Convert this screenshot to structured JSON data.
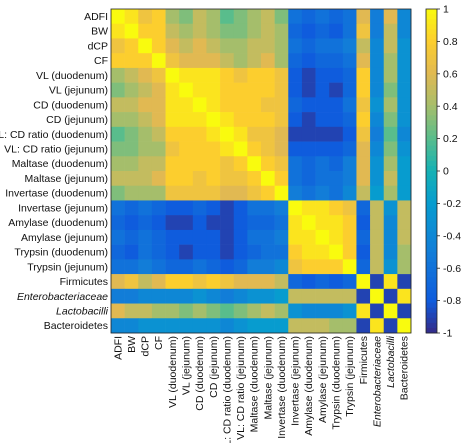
{
  "chart_data": {
    "type": "heatmap",
    "labels": [
      "ADFI",
      "BW",
      "dCP",
      "CF",
      "VL (duodenum)",
      "VL (jejunum)",
      "CD (duodenum)",
      "CD (jejunum)",
      "VL: CD ratio (duodenum)",
      "VL: CD ratio (jejunum)",
      "Maltase (duodenum)",
      "Maltase (jejunum)",
      "Invertase (duodenum)",
      "Invertase (jejunum)",
      "Amylase (duodenum)",
      "Amylase (jejunum)",
      "Trypsin (duodenum)",
      "Trypsin (jejunum)",
      "Firmicutes",
      "Enterobacteriaceae",
      "Lactobacilli",
      "Bacteroidetes"
    ],
    "italic_labels": [
      "Enterobacteriaceae",
      "Lactobacilli"
    ],
    "matrix": [
      [
        1.0,
        0.9,
        0.7,
        0.8,
        0.4,
        0.3,
        0.5,
        0.4,
        0.2,
        0.3,
        0.4,
        0.5,
        0.3,
        -0.6,
        -0.7,
        -0.6,
        -0.7,
        -0.6,
        0.6,
        -0.5,
        0.6,
        -0.4
      ],
      [
        0.9,
        1.0,
        0.8,
        0.8,
        0.5,
        0.4,
        0.5,
        0.4,
        0.3,
        0.3,
        0.4,
        0.5,
        0.4,
        -0.7,
        -0.8,
        -0.7,
        -0.8,
        -0.6,
        0.7,
        -0.5,
        0.5,
        -0.4
      ],
      [
        0.7,
        0.8,
        1.0,
        0.8,
        0.6,
        0.5,
        0.6,
        0.5,
        0.4,
        0.4,
        0.5,
        0.5,
        0.4,
        -0.6,
        -0.7,
        -0.6,
        -0.6,
        -0.5,
        0.5,
        -0.4,
        0.5,
        -0.3
      ],
      [
        0.8,
        0.8,
        0.8,
        1.0,
        0.7,
        0.6,
        0.6,
        0.6,
        0.5,
        0.4,
        0.5,
        0.6,
        0.4,
        -0.7,
        -0.8,
        -0.7,
        -0.7,
        -0.6,
        0.6,
        -0.4,
        0.4,
        -0.3
      ],
      [
        0.4,
        0.5,
        0.6,
        0.7,
        1.0,
        0.9,
        0.9,
        0.9,
        0.8,
        0.7,
        0.8,
        0.8,
        0.7,
        -0.8,
        -0.9,
        -0.8,
        -0.8,
        -0.7,
        0.8,
        -0.4,
        0.4,
        -0.3
      ],
      [
        0.3,
        0.4,
        0.5,
        0.6,
        0.9,
        1.0,
        0.9,
        0.9,
        0.8,
        0.8,
        0.8,
        0.8,
        0.7,
        -0.8,
        -0.9,
        -0.8,
        -0.9,
        -0.7,
        0.8,
        -0.4,
        0.3,
        -0.3
      ],
      [
        0.5,
        0.5,
        0.6,
        0.6,
        0.9,
        0.9,
        1.0,
        0.9,
        0.8,
        0.8,
        0.8,
        0.7,
        0.7,
        -0.7,
        -0.8,
        -0.8,
        -0.8,
        -0.6,
        0.7,
        -0.3,
        0.4,
        -0.3
      ],
      [
        0.4,
        0.4,
        0.5,
        0.6,
        0.9,
        0.9,
        0.9,
        1.0,
        0.9,
        0.8,
        0.8,
        0.8,
        0.7,
        -0.8,
        -0.9,
        -0.8,
        -0.8,
        -0.7,
        0.8,
        -0.4,
        0.3,
        -0.3
      ],
      [
        0.2,
        0.3,
        0.4,
        0.5,
        0.8,
        0.8,
        0.8,
        0.9,
        1.0,
        0.9,
        0.7,
        0.7,
        0.6,
        -0.9,
        -0.9,
        -0.9,
        -0.9,
        -0.8,
        0.7,
        -0.5,
        0.2,
        -0.4
      ],
      [
        0.3,
        0.3,
        0.4,
        0.4,
        0.7,
        0.8,
        0.8,
        0.8,
        0.9,
        1.0,
        0.8,
        0.7,
        0.6,
        -0.8,
        -0.8,
        -0.8,
        -0.8,
        -0.7,
        0.6,
        -0.4,
        0.3,
        -0.3
      ],
      [
        0.4,
        0.4,
        0.5,
        0.5,
        0.8,
        0.8,
        0.8,
        0.8,
        0.7,
        0.8,
        1.0,
        0.8,
        0.7,
        -0.6,
        -0.7,
        -0.6,
        -0.7,
        -0.5,
        0.6,
        -0.3,
        0.4,
        -0.2
      ],
      [
        0.5,
        0.5,
        0.5,
        0.6,
        0.8,
        0.8,
        0.7,
        0.8,
        0.7,
        0.7,
        0.8,
        1.0,
        0.8,
        -0.6,
        -0.7,
        -0.6,
        -0.6,
        -0.5,
        0.6,
        -0.3,
        0.5,
        -0.2
      ],
      [
        0.3,
        0.4,
        0.4,
        0.4,
        0.7,
        0.7,
        0.7,
        0.7,
        0.6,
        0.6,
        0.7,
        0.8,
        1.0,
        -0.5,
        -0.6,
        -0.5,
        -0.6,
        -0.4,
        0.5,
        -0.2,
        0.4,
        -0.2
      ],
      [
        -0.6,
        -0.7,
        -0.6,
        -0.7,
        -0.8,
        -0.8,
        -0.7,
        -0.8,
        -0.9,
        -0.8,
        -0.6,
        -0.6,
        -0.5,
        1.0,
        0.9,
        0.9,
        0.8,
        0.7,
        -0.7,
        0.5,
        -0.3,
        0.5
      ],
      [
        -0.7,
        -0.8,
        -0.7,
        -0.8,
        -0.9,
        -0.9,
        -0.8,
        -0.9,
        -0.9,
        -0.8,
        -0.7,
        -0.7,
        -0.6,
        0.9,
        1.0,
        0.9,
        0.9,
        0.8,
        -0.8,
        0.5,
        -0.4,
        0.5
      ],
      [
        -0.6,
        -0.7,
        -0.6,
        -0.7,
        -0.8,
        -0.8,
        -0.8,
        -0.8,
        -0.9,
        -0.8,
        -0.6,
        -0.6,
        -0.5,
        0.9,
        0.9,
        1.0,
        0.9,
        0.8,
        -0.7,
        0.5,
        -0.4,
        0.5
      ],
      [
        -0.7,
        -0.8,
        -0.6,
        -0.7,
        -0.8,
        -0.9,
        -0.8,
        -0.8,
        -0.9,
        -0.8,
        -0.7,
        -0.6,
        -0.6,
        0.8,
        0.9,
        0.9,
        1.0,
        0.8,
        -0.8,
        0.5,
        -0.4,
        0.4
      ],
      [
        -0.6,
        -0.6,
        -0.5,
        -0.6,
        -0.7,
        -0.7,
        -0.6,
        -0.7,
        -0.8,
        -0.7,
        -0.5,
        -0.5,
        -0.4,
        0.7,
        0.8,
        0.8,
        0.8,
        1.0,
        -0.7,
        0.5,
        -0.3,
        0.4
      ],
      [
        0.6,
        0.7,
        0.5,
        0.6,
        0.8,
        0.8,
        0.7,
        0.8,
        0.7,
        0.6,
        0.6,
        0.6,
        0.5,
        -0.7,
        -0.8,
        -0.7,
        -0.8,
        -0.7,
        1.0,
        -0.9,
        0.9,
        -0.9
      ],
      [
        -0.5,
        -0.5,
        -0.4,
        -0.4,
        -0.4,
        -0.4,
        -0.3,
        -0.4,
        -0.5,
        -0.4,
        -0.3,
        -0.3,
        -0.2,
        0.5,
        0.5,
        0.5,
        0.5,
        0.5,
        -0.9,
        1.0,
        -0.9,
        0.9
      ],
      [
        0.6,
        0.5,
        0.5,
        0.4,
        0.4,
        0.3,
        0.4,
        0.3,
        0.2,
        0.3,
        0.4,
        0.5,
        0.4,
        -0.3,
        -0.4,
        -0.4,
        -0.4,
        -0.3,
        0.9,
        -0.9,
        1.0,
        -0.9
      ],
      [
        -0.4,
        -0.4,
        -0.3,
        -0.3,
        -0.3,
        -0.3,
        -0.3,
        -0.3,
        -0.4,
        -0.3,
        -0.2,
        -0.2,
        -0.2,
        0.5,
        0.5,
        0.5,
        0.4,
        0.4,
        -0.9,
        0.9,
        -0.9,
        1.0
      ]
    ],
    "colorbar": {
      "range": [
        -1,
        1
      ],
      "ticks": [
        1,
        0.8,
        0.6,
        0.4,
        0.2,
        0,
        -0.2,
        -0.4,
        -0.6,
        -0.8,
        -1
      ]
    },
    "colormap": "parula"
  }
}
